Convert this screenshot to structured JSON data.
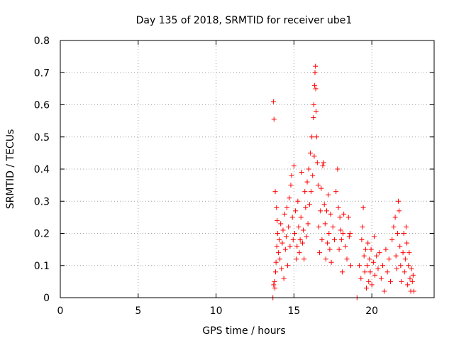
{
  "chart_data": {
    "type": "scatter",
    "title": "Day 135 of 2018, SRMTID for receiver ube1",
    "xlabel": "GPS time / hours",
    "ylabel": "SRMTID / TECUs",
    "xlim": [
      0,
      24
    ],
    "ylim": [
      0,
      0.8
    ],
    "xticks": [
      0,
      5,
      10,
      15,
      20
    ],
    "xtick_labels": [
      "0",
      "5",
      "10",
      "15",
      "20"
    ],
    "yticks": [
      0,
      0.1,
      0.2,
      0.3,
      0.4,
      0.5,
      0.6,
      0.7,
      0.8
    ],
    "ytick_labels": [
      "0",
      "0.1",
      "0.2",
      "0.3",
      "0.4",
      "0.5",
      "0.6",
      "0.7",
      "0.8"
    ],
    "grid": true,
    "marker": "+",
    "color": "#ff0000",
    "series": [
      {
        "name": "SRMTID",
        "points": [
          [
            13.65,
            0.0
          ],
          [
            13.68,
            0.61
          ],
          [
            13.72,
            0.555
          ],
          [
            13.7,
            0.04
          ],
          [
            13.75,
            0.05
          ],
          [
            13.78,
            0.03
          ],
          [
            13.8,
            0.33
          ],
          [
            13.82,
            0.08
          ],
          [
            13.85,
            0.11
          ],
          [
            13.88,
            0.28
          ],
          [
            13.9,
            0.16
          ],
          [
            13.92,
            0.24
          ],
          [
            13.95,
            0.2
          ],
          [
            14.0,
            0.14
          ],
          [
            14.05,
            0.18
          ],
          [
            14.1,
            0.12
          ],
          [
            14.15,
            0.23
          ],
          [
            14.2,
            0.09
          ],
          [
            14.25,
            0.17
          ],
          [
            14.3,
            0.21
          ],
          [
            14.35,
            0.06
          ],
          [
            14.4,
            0.26
          ],
          [
            14.45,
            0.15
          ],
          [
            14.5,
            0.19
          ],
          [
            14.55,
            0.28
          ],
          [
            14.6,
            0.1
          ],
          [
            14.65,
            0.22
          ],
          [
            14.7,
            0.31
          ],
          [
            14.75,
            0.16
          ],
          [
            14.8,
            0.35
          ],
          [
            14.85,
            0.38
          ],
          [
            14.9,
            0.25
          ],
          [
            14.95,
            0.18
          ],
          [
            15.0,
            0.41
          ],
          [
            15.05,
            0.2
          ],
          [
            15.1,
            0.27
          ],
          [
            15.15,
            0.12
          ],
          [
            15.2,
            0.16
          ],
          [
            15.25,
            0.3
          ],
          [
            15.3,
            0.22
          ],
          [
            15.35,
            0.14
          ],
          [
            15.4,
            0.18
          ],
          [
            15.45,
            0.25
          ],
          [
            15.5,
            0.39
          ],
          [
            15.55,
            0.17
          ],
          [
            15.6,
            0.21
          ],
          [
            15.65,
            0.12
          ],
          [
            15.7,
            0.33
          ],
          [
            15.75,
            0.28
          ],
          [
            15.8,
            0.19
          ],
          [
            15.85,
            0.36
          ],
          [
            15.9,
            0.23
          ],
          [
            15.95,
            0.4
          ],
          [
            16.0,
            0.29
          ],
          [
            16.05,
            0.45
          ],
          [
            16.1,
            0.33
          ],
          [
            16.15,
            0.5
          ],
          [
            16.2,
            0.38
          ],
          [
            16.25,
            0.56
          ],
          [
            16.28,
            0.6
          ],
          [
            16.3,
            0.44
          ],
          [
            16.32,
            0.66
          ],
          [
            16.35,
            0.7
          ],
          [
            16.38,
            0.72
          ],
          [
            16.4,
            0.65
          ],
          [
            16.42,
            0.58
          ],
          [
            16.45,
            0.5
          ],
          [
            16.5,
            0.42
          ],
          [
            16.55,
            0.35
          ],
          [
            16.6,
            0.22
          ],
          [
            16.65,
            0.14
          ],
          [
            16.7,
            0.27
          ],
          [
            16.75,
            0.34
          ],
          [
            16.8,
            0.18
          ],
          [
            16.85,
            0.41
          ],
          [
            16.9,
            0.42
          ],
          [
            16.95,
            0.29
          ],
          [
            17.0,
            0.23
          ],
          [
            17.05,
            0.12
          ],
          [
            17.1,
            0.27
          ],
          [
            17.15,
            0.17
          ],
          [
            17.2,
            0.32
          ],
          [
            17.25,
            0.2
          ],
          [
            17.3,
            0.15
          ],
          [
            17.35,
            0.26
          ],
          [
            17.4,
            0.11
          ],
          [
            17.5,
            0.22
          ],
          [
            17.6,
            0.18
          ],
          [
            17.7,
            0.33
          ],
          [
            17.8,
            0.4
          ],
          [
            17.85,
            0.28
          ],
          [
            17.9,
            0.15
          ],
          [
            17.95,
            0.25
          ],
          [
            18.0,
            0.21
          ],
          [
            18.05,
            0.18
          ],
          [
            18.1,
            0.08
          ],
          [
            18.15,
            0.2
          ],
          [
            18.2,
            0.26
          ],
          [
            18.3,
            0.16
          ],
          [
            18.4,
            0.12
          ],
          [
            18.5,
            0.25
          ],
          [
            18.55,
            0.19
          ],
          [
            18.6,
            0.2
          ],
          [
            18.65,
            0.1
          ],
          [
            19.05,
            0.0
          ],
          [
            19.2,
            0.1
          ],
          [
            19.3,
            0.06
          ],
          [
            19.35,
            0.18
          ],
          [
            19.4,
            0.22
          ],
          [
            19.45,
            0.28
          ],
          [
            19.5,
            0.13
          ],
          [
            19.55,
            0.08
          ],
          [
            19.6,
            0.15
          ],
          [
            19.65,
            0.03
          ],
          [
            19.7,
            0.1
          ],
          [
            19.75,
            0.17
          ],
          [
            19.8,
            0.05
          ],
          [
            19.85,
            0.12
          ],
          [
            19.9,
            0.08
          ],
          [
            19.95,
            0.15
          ],
          [
            20.0,
            0.04
          ],
          [
            20.1,
            0.11
          ],
          [
            20.15,
            0.19
          ],
          [
            20.2,
            0.07
          ],
          [
            20.3,
            0.13
          ],
          [
            20.4,
            0.09
          ],
          [
            20.5,
            0.14
          ],
          [
            20.6,
            0.06
          ],
          [
            20.7,
            0.1
          ],
          [
            20.8,
            0.02
          ],
          [
            20.9,
            0.15
          ],
          [
            21.0,
            0.08
          ],
          [
            21.1,
            0.12
          ],
          [
            21.2,
            0.05
          ],
          [
            21.3,
            0.18
          ],
          [
            21.4,
            0.22
          ],
          [
            21.5,
            0.25
          ],
          [
            21.55,
            0.13
          ],
          [
            21.6,
            0.09
          ],
          [
            21.65,
            0.2
          ],
          [
            21.7,
            0.3
          ],
          [
            21.75,
            0.27
          ],
          [
            21.8,
            0.16
          ],
          [
            21.85,
            0.1
          ],
          [
            21.9,
            0.05
          ],
          [
            22.0,
            0.14
          ],
          [
            22.05,
            0.2
          ],
          [
            22.1,
            0.08
          ],
          [
            22.15,
            0.12
          ],
          [
            22.2,
            0.22
          ],
          [
            22.25,
            0.17
          ],
          [
            22.3,
            0.04
          ],
          [
            22.35,
            0.1
          ],
          [
            22.4,
            0.14
          ],
          [
            22.45,
            0.06
          ],
          [
            22.5,
            0.02
          ],
          [
            22.55,
            0.09
          ],
          [
            22.6,
            0.05
          ],
          [
            22.65,
            0.07
          ],
          [
            22.7,
            0.02
          ]
        ]
      }
    ]
  }
}
